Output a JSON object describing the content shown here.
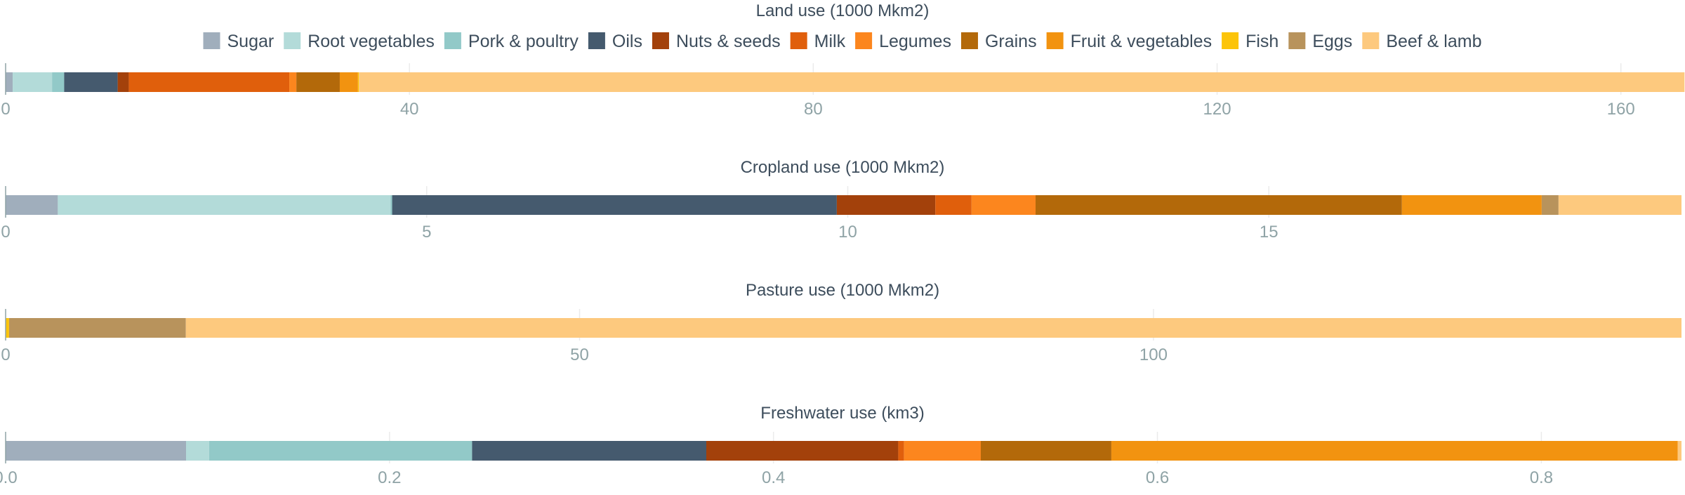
{
  "chart_data": {
    "type": "bar",
    "orientation": "horizontal-stacked",
    "legend": {
      "placement": "top",
      "entries": [
        {
          "name": "Sugar",
          "color": "#a0aebc"
        },
        {
          "name": "Root vegetables",
          "color": "#b3dbd9"
        },
        {
          "name": "Pork & poultry",
          "color": "#92c9c8"
        },
        {
          "name": "Oils",
          "color": "#455a6e"
        },
        {
          "name": "Nuts & seeds",
          "color": "#a3410b"
        },
        {
          "name": "Milk",
          "color": "#e05f0c"
        },
        {
          "name": "Legumes",
          "color": "#fc861e"
        },
        {
          "name": "Grains",
          "color": "#b3690a"
        },
        {
          "name": "Fruit & vegetables",
          "color": "#f29310"
        },
        {
          "name": "Fish",
          "color": "#fcc409"
        },
        {
          "name": "Eggs",
          "color": "#b8935c"
        },
        {
          "name": "Beef & lamb",
          "color": "#fdc97e"
        }
      ]
    },
    "panels": [
      {
        "title": "Land use (1000 Mkm2)",
        "xlim": [
          0,
          166
        ],
        "ticks": [
          "0",
          "40",
          "80",
          "120",
          "160"
        ],
        "tick_values": [
          0,
          40,
          80,
          120,
          160
        ],
        "grid": true,
        "segments": [
          {
            "name": "Sugar",
            "value": 0.7
          },
          {
            "name": "Root vegetables",
            "value": 3.9
          },
          {
            "name": "Pork & poultry",
            "value": 1.2
          },
          {
            "name": "Oils",
            "value": 5.3
          },
          {
            "name": "Nuts & seeds",
            "value": 1.1
          },
          {
            "name": "Milk",
            "value": 15.9
          },
          {
            "name": "Legumes",
            "value": 0.7
          },
          {
            "name": "Grains",
            "value": 4.3
          },
          {
            "name": "Fruit & vegetables",
            "value": 1.8
          },
          {
            "name": "Fish",
            "value": 0.1
          },
          {
            "name": "Beef & lamb",
            "value": 131.3
          }
        ]
      },
      {
        "title": "Cropland use (1000 Mkm2)",
        "xlim": [
          0,
          19.9
        ],
        "ticks": [
          "0",
          "5",
          "10",
          "15"
        ],
        "tick_values": [
          0,
          5,
          10,
          15
        ],
        "grid": true,
        "segments": [
          {
            "name": "Sugar",
            "value": 0.62
          },
          {
            "name": "Root vegetables",
            "value": 3.95
          },
          {
            "name": "Pork & poultry",
            "value": 0.02
          },
          {
            "name": "Oils",
            "value": 5.28
          },
          {
            "name": "Nuts & seeds",
            "value": 1.17
          },
          {
            "name": "Milk",
            "value": 0.43
          },
          {
            "name": "Legumes",
            "value": 0.76
          },
          {
            "name": "Grains",
            "value": 4.35
          },
          {
            "name": "Fruit & vegetables",
            "value": 1.66
          },
          {
            "name": "Eggs",
            "value": 0.2
          },
          {
            "name": "Beef & lamb",
            "value": 1.46
          }
        ]
      },
      {
        "title": "Pasture use (1000 Mkm2)",
        "xlim": [
          0,
          146
        ],
        "ticks": [
          "0",
          "50",
          "100"
        ],
        "tick_values": [
          0,
          50,
          100
        ],
        "grid": true,
        "segments": [
          {
            "name": "Fish",
            "value": 0.3
          },
          {
            "name": "Eggs",
            "value": 15.4
          },
          {
            "name": "Beef & lamb",
            "value": 130.3
          }
        ]
      },
      {
        "title": "Freshwater use (km3)",
        "xlim": [
          0,
          0.873
        ],
        "ticks": [
          "0.0",
          "0.2",
          "0.4",
          "0.6",
          "0.8"
        ],
        "tick_values": [
          0,
          0.2,
          0.4,
          0.6,
          0.8
        ],
        "grid": true,
        "segments": [
          {
            "name": "Sugar",
            "value": 0.094
          },
          {
            "name": "Root vegetables",
            "value": 0.012
          },
          {
            "name": "Pork & poultry",
            "value": 0.137
          },
          {
            "name": "Oils",
            "value": 0.122
          },
          {
            "name": "Nuts & seeds",
            "value": 0.1
          },
          {
            "name": "Milk",
            "value": 0.003
          },
          {
            "name": "Legumes",
            "value": 0.04
          },
          {
            "name": "Grains",
            "value": 0.068
          },
          {
            "name": "Fruit & vegetables",
            "value": 0.295
          },
          {
            "name": "Beef & lamb",
            "value": 0.002
          }
        ]
      }
    ]
  }
}
